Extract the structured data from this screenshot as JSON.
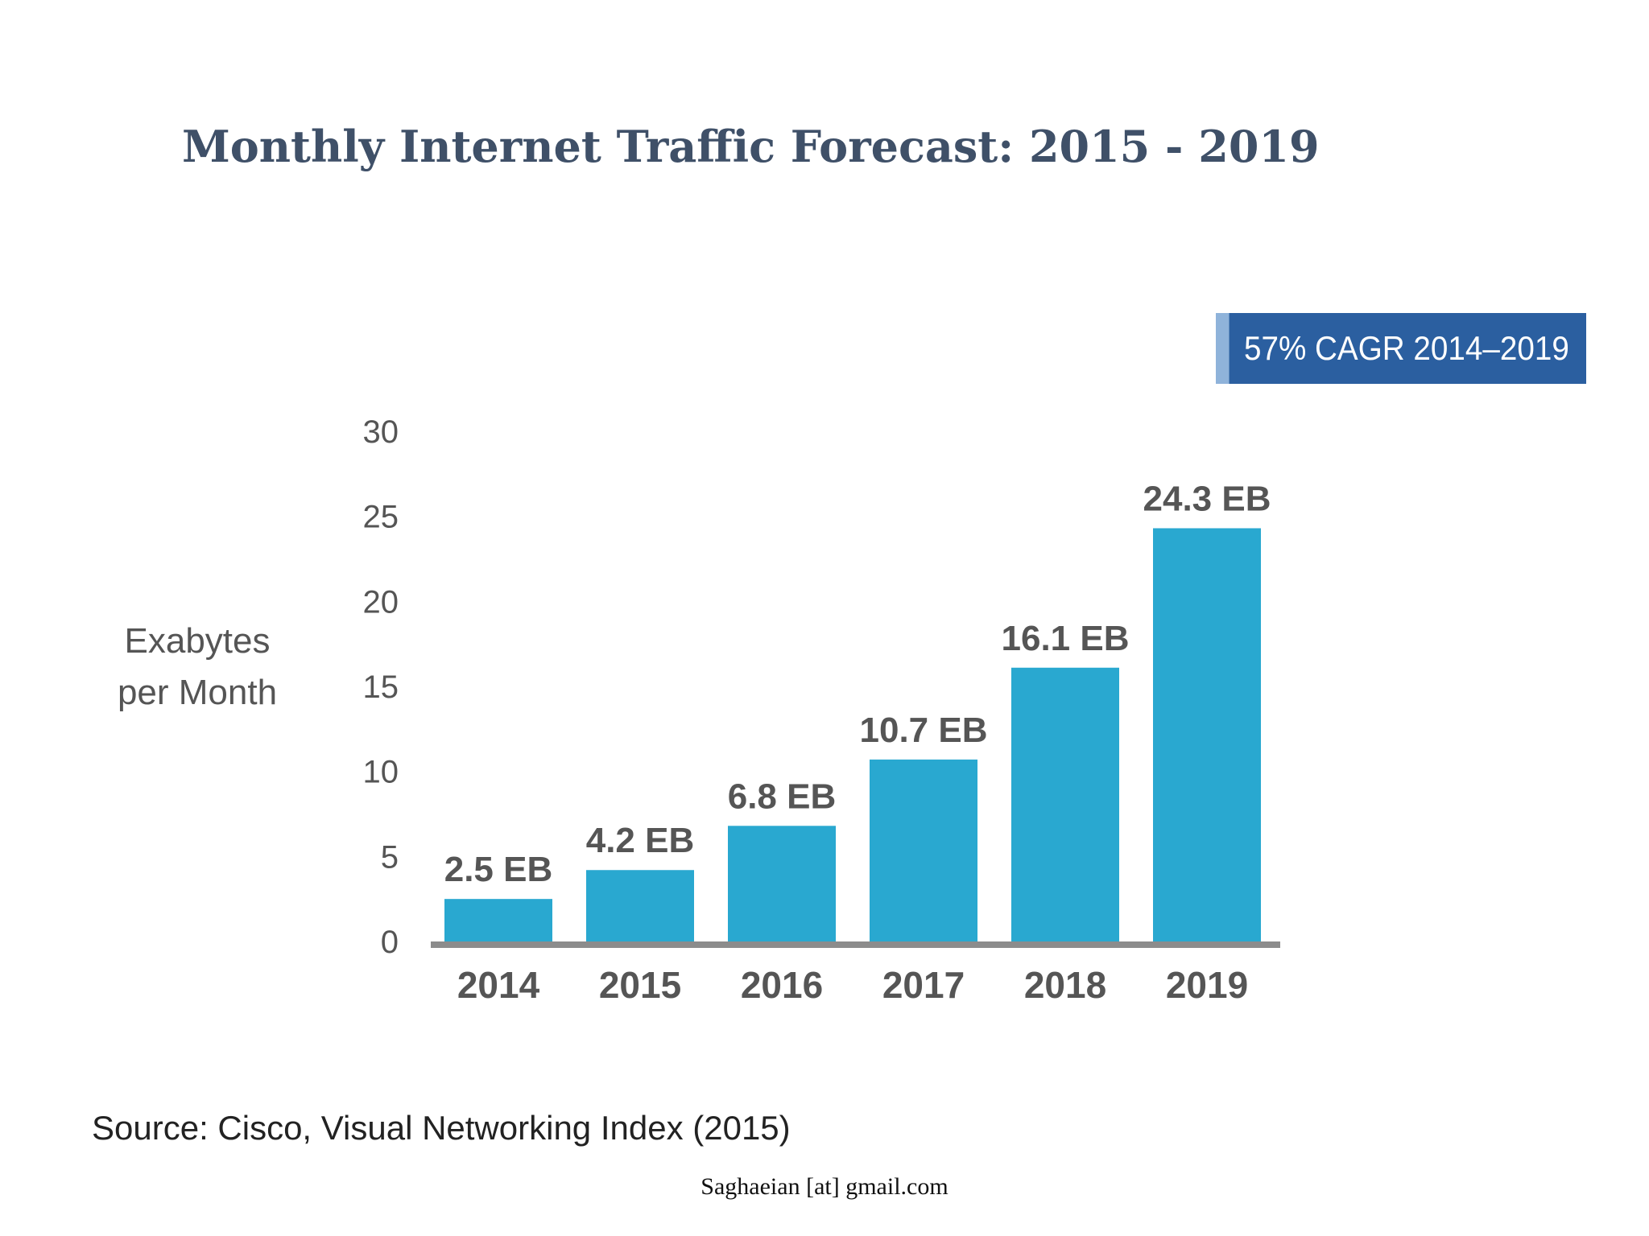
{
  "page_title": "Monthly Internet Traffic Forecast: 2015 - 2019",
  "badge": "57% CAGR 2014–2019",
  "source": "Source: Cisco, Visual Networking Index (2015)",
  "credit": "Saghaeian [at] gmail.com",
  "colors": {
    "bar": "#29a8d0",
    "baseline": "#8c8c8c",
    "badge": "#2b5fa0",
    "title": "#3f5068"
  },
  "chart_data": {
    "type": "bar",
    "ylabel_lines": [
      "Exabytes",
      "per Month"
    ],
    "categories": [
      "2014",
      "2015",
      "2016",
      "2017",
      "2018",
      "2019"
    ],
    "values": [
      2.5,
      4.2,
      6.8,
      10.7,
      16.1,
      24.3
    ],
    "value_labels": [
      "2.5 EB",
      "4.2 EB",
      "6.8 EB",
      "10.7 EB",
      "16.1 EB",
      "24.3 EB"
    ],
    "ylim": [
      0,
      30
    ],
    "yticks": [
      0,
      5,
      10,
      15,
      20,
      25,
      30
    ],
    "grid": false,
    "legend": "none"
  }
}
